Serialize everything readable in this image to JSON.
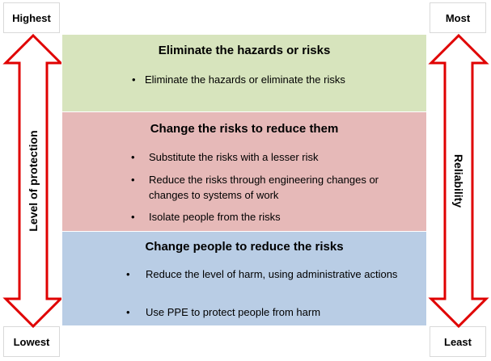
{
  "corners": {
    "top_left": "Highest",
    "top_right": "Most",
    "bottom_left": "Lowest",
    "bottom_right": "Least"
  },
  "axes": {
    "left": "Level of protection",
    "right": "Reliability"
  },
  "colors": {
    "arrow_stroke": "#e00000",
    "band_1": "#d7e4bd",
    "band_2": "#e6b9b8",
    "band_3": "#b9cde5"
  },
  "bands": [
    {
      "title": "Eliminate the hazards or risks",
      "bullets": [
        "Eliminate the hazards or eliminate the risks"
      ]
    },
    {
      "title": "Change the risks to reduce them",
      "bullets": [
        "Substitute the risks with a lesser risk",
        "Reduce the risks through engineering changes or changes to systems of work",
        "Isolate people from the risks"
      ]
    },
    {
      "title": "Change people to reduce the risks",
      "bullets": [
        "Reduce the level of harm, using administrative actions",
        "Use PPE to protect people from harm"
      ]
    }
  ]
}
